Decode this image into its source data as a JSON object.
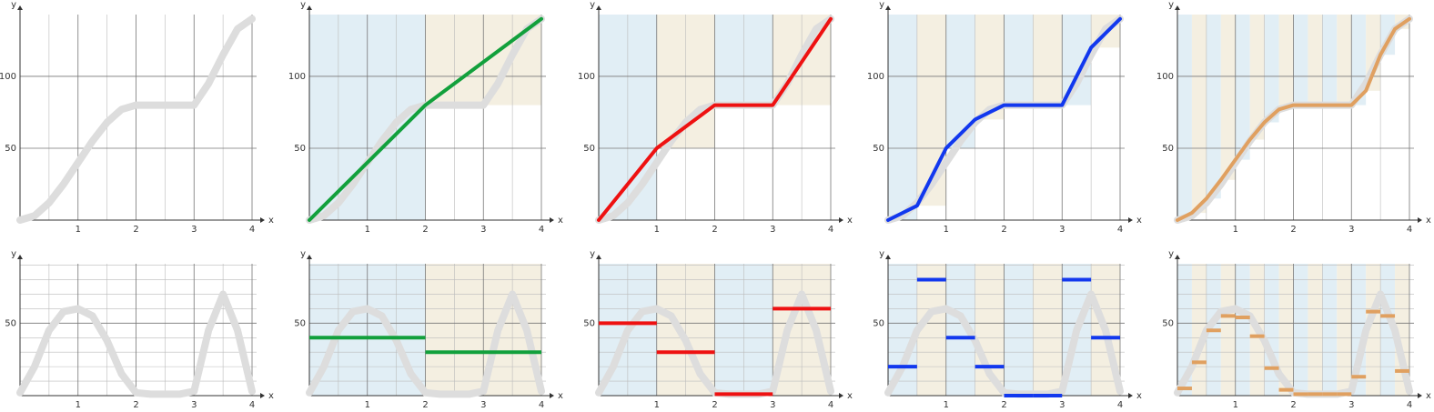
{
  "chart_data": [
    {
      "type": "line",
      "xlabel": "x",
      "ylabel": "y",
      "xlim": [
        0,
        4
      ],
      "ylim": [
        0,
        143
      ],
      "xticks": [
        1,
        2,
        3,
        4
      ],
      "xminor": [
        0.5,
        1.5,
        2.5,
        3.5
      ],
      "yticks": [
        50,
        100
      ],
      "yminor": [],
      "band_colors": [
        "#e1eef5",
        "#f4efe1"
      ],
      "series": [
        {
          "color": "#dddddd",
          "x": [
            0,
            0.25,
            0.5,
            0.75,
            1,
            1.25,
            1.5,
            1.75,
            2,
            2.25,
            2.5,
            2.75,
            3,
            3.25,
            3.5,
            3.75,
            4
          ],
          "values": [
            0,
            3,
            12,
            25,
            40,
            55,
            68,
            77,
            80,
            80,
            80,
            80,
            80,
            95,
            115,
            133,
            140
          ]
        }
      ]
    },
    {
      "type": "line",
      "xlabel": "x",
      "ylabel": "y",
      "xlim": [
        0,
        4
      ],
      "ylim": [
        0,
        143
      ],
      "xticks": [
        1,
        2,
        3,
        4
      ],
      "xminor": [
        0.5,
        1.5,
        2.5,
        3.5
      ],
      "yticks": [
        50,
        100
      ],
      "yminor": [],
      "band_colors": [
        "#e1eef5",
        "#f4efe1"
      ],
      "series": [
        {
          "color": "#dddddd",
          "x": [
            0,
            0.25,
            0.5,
            0.75,
            1,
            1.25,
            1.5,
            1.75,
            2,
            2.25,
            2.5,
            2.75,
            3,
            3.25,
            3.5,
            3.75,
            4
          ],
          "values": [
            0,
            3,
            12,
            25,
            40,
            55,
            68,
            77,
            80,
            80,
            80,
            80,
            80,
            95,
            115,
            133,
            140
          ]
        },
        {
          "color": "#12a03c",
          "x": [
            0,
            2,
            4
          ],
          "values": [
            0,
            80,
            140
          ]
        }
      ]
    },
    {
      "type": "line",
      "xlabel": "x",
      "ylabel": "y",
      "xlim": [
        0,
        4
      ],
      "ylim": [
        0,
        143
      ],
      "xticks": [
        1,
        2,
        3,
        4
      ],
      "xminor": [
        0.5,
        1.5,
        2.5,
        3.5
      ],
      "yticks": [
        50,
        100
      ],
      "yminor": [],
      "band_colors": [
        "#e1eef5",
        "#f4efe1"
      ],
      "series": [
        {
          "color": "#dddddd",
          "x": [
            0,
            0.25,
            0.5,
            0.75,
            1,
            1.25,
            1.5,
            1.75,
            2,
            2.25,
            2.5,
            2.75,
            3,
            3.25,
            3.5,
            3.75,
            4
          ],
          "values": [
            0,
            3,
            12,
            25,
            40,
            55,
            68,
            77,
            80,
            80,
            80,
            80,
            80,
            95,
            115,
            133,
            140
          ]
        },
        {
          "color": "#ee1111",
          "x": [
            0,
            1,
            2,
            3,
            4
          ],
          "values": [
            0,
            50,
            80,
            80,
            140
          ]
        }
      ]
    },
    {
      "type": "line",
      "xlabel": "x",
      "ylabel": "y",
      "xlim": [
        0,
        4
      ],
      "ylim": [
        0,
        143
      ],
      "xticks": [
        1,
        2,
        3,
        4
      ],
      "xminor": [
        0.5,
        1.5,
        2.5,
        3.5
      ],
      "yticks": [
        50,
        100
      ],
      "yminor": [],
      "band_colors": [
        "#e1eef5",
        "#f4efe1"
      ],
      "series": [
        {
          "color": "#dddddd",
          "x": [
            0,
            0.25,
            0.5,
            0.75,
            1,
            1.25,
            1.5,
            1.75,
            2,
            2.25,
            2.5,
            2.75,
            3,
            3.25,
            3.5,
            3.75,
            4
          ],
          "values": [
            0,
            3,
            12,
            25,
            40,
            55,
            68,
            77,
            80,
            80,
            80,
            80,
            80,
            95,
            115,
            133,
            140
          ]
        },
        {
          "color": "#1238ee",
          "x": [
            0,
            0.5,
            1,
            1.5,
            2,
            2.5,
            3,
            3.5,
            4
          ],
          "values": [
            0,
            10,
            50,
            70,
            80,
            80,
            80,
            120,
            140
          ]
        }
      ]
    },
    {
      "type": "line",
      "xlabel": "x",
      "ylabel": "y",
      "xlim": [
        0,
        4
      ],
      "ylim": [
        0,
        143
      ],
      "xticks": [
        1,
        2,
        3,
        4
      ],
      "xminor": [
        0.5,
        1.5,
        2.5,
        3.5
      ],
      "yticks": [
        50,
        100
      ],
      "yminor": [],
      "band_colors": [
        "#e1eef5",
        "#f4efe1"
      ],
      "series": [
        {
          "color": "#dddddd",
          "x": [
            0,
            0.25,
            0.5,
            0.75,
            1,
            1.25,
            1.5,
            1.75,
            2,
            2.25,
            2.5,
            2.75,
            3,
            3.25,
            3.5,
            3.75,
            4
          ],
          "values": [
            0,
            3,
            12,
            25,
            40,
            55,
            68,
            77,
            80,
            80,
            80,
            80,
            80,
            95,
            115,
            133,
            140
          ]
        },
        {
          "color": "#e0a060",
          "x": [
            0,
            0.25,
            0.5,
            0.75,
            1,
            1.25,
            1.5,
            1.75,
            2,
            2.25,
            2.5,
            2.75,
            3,
            3.25,
            3.5,
            3.75,
            4
          ],
          "values": [
            0,
            5,
            15,
            28,
            42,
            56,
            68,
            77,
            80,
            80,
            80,
            80,
            80,
            90,
            115,
            133,
            140
          ]
        }
      ]
    },
    {
      "type": "step",
      "xlabel": "x",
      "ylabel": "y",
      "xlim": [
        0,
        4
      ],
      "ylim": [
        0,
        91
      ],
      "xticks": [
        1,
        2,
        3,
        4
      ],
      "xminor": [
        0.5,
        1.5,
        2.5,
        3.5
      ],
      "yticks": [
        50
      ],
      "yminor": [
        10,
        20,
        30,
        40,
        60,
        70,
        80,
        90
      ],
      "band_colors": [
        "#e1eef5",
        "#f4efe1"
      ],
      "series": [
        {
          "color": "#dddddd",
          "x": [
            0,
            0.25,
            0.5,
            0.75,
            1,
            1.25,
            1.5,
            1.75,
            2,
            2.25,
            2.5,
            2.75,
            3,
            3.25,
            3.5,
            3.75,
            4
          ],
          "values": [
            2,
            20,
            45,
            58,
            60,
            55,
            38,
            15,
            2,
            1,
            1,
            1,
            3,
            45,
            70,
            45,
            3
          ]
        }
      ]
    },
    {
      "type": "step",
      "xlabel": "x",
      "ylabel": "y",
      "xlim": [
        0,
        4
      ],
      "ylim": [
        0,
        91
      ],
      "xticks": [
        1,
        2,
        3,
        4
      ],
      "xminor": [
        0.5,
        1.5,
        2.5,
        3.5
      ],
      "yticks": [
        50
      ],
      "yminor": [
        10,
        20,
        30,
        40,
        60,
        70,
        80,
        90
      ],
      "band_colors": [
        "#e1eef5",
        "#f4efe1"
      ],
      "series": [
        {
          "color": "#dddddd",
          "x": [
            0,
            0.25,
            0.5,
            0.75,
            1,
            1.25,
            1.5,
            1.75,
            2,
            2.25,
            2.5,
            2.75,
            3,
            3.25,
            3.5,
            3.75,
            4
          ],
          "values": [
            2,
            20,
            45,
            58,
            60,
            55,
            38,
            15,
            2,
            1,
            1,
            1,
            3,
            45,
            70,
            45,
            3
          ]
        },
        {
          "color": "#12a03c",
          "bins": [
            0,
            2,
            4
          ],
          "values": [
            40,
            30
          ]
        }
      ]
    },
    {
      "type": "step",
      "xlabel": "x",
      "ylabel": "y",
      "xlim": [
        0,
        4
      ],
      "ylim": [
        0,
        91
      ],
      "xticks": [
        1,
        2,
        3,
        4
      ],
      "xminor": [
        0.5,
        1.5,
        2.5,
        3.5
      ],
      "yticks": [
        50
      ],
      "yminor": [
        10,
        20,
        30,
        40,
        60,
        70,
        80,
        90
      ],
      "band_colors": [
        "#e1eef5",
        "#f4efe1"
      ],
      "series": [
        {
          "color": "#dddddd",
          "x": [
            0,
            0.25,
            0.5,
            0.75,
            1,
            1.25,
            1.5,
            1.75,
            2,
            2.25,
            2.5,
            2.75,
            3,
            3.25,
            3.5,
            3.75,
            4
          ],
          "values": [
            2,
            20,
            45,
            58,
            60,
            55,
            38,
            15,
            2,
            1,
            1,
            1,
            3,
            45,
            70,
            45,
            3
          ]
        },
        {
          "color": "#ee1111",
          "bins": [
            0,
            1,
            2,
            3,
            4
          ],
          "values": [
            50,
            30,
            1,
            60
          ]
        }
      ]
    },
    {
      "type": "step",
      "xlabel": "x",
      "ylabel": "y",
      "xlim": [
        0,
        4
      ],
      "ylim": [
        0,
        91
      ],
      "xticks": [
        1,
        2,
        3,
        4
      ],
      "xminor": [
        0.5,
        1.5,
        2.5,
        3.5
      ],
      "yticks": [
        50
      ],
      "yminor": [
        10,
        20,
        30,
        40,
        60,
        70,
        80,
        90
      ],
      "band_colors": [
        "#e1eef5",
        "#f4efe1"
      ],
      "series": [
        {
          "color": "#dddddd",
          "x": [
            0,
            0.25,
            0.5,
            0.75,
            1,
            1.25,
            1.5,
            1.75,
            2,
            2.25,
            2.5,
            2.75,
            3,
            3.25,
            3.5,
            3.75,
            4
          ],
          "values": [
            2,
            20,
            45,
            58,
            60,
            55,
            38,
            15,
            2,
            1,
            1,
            1,
            3,
            45,
            70,
            45,
            3
          ]
        },
        {
          "color": "#1238ee",
          "bins": [
            0,
            0.5,
            1,
            1.5,
            2,
            2.5,
            3,
            3.5,
            4
          ],
          "values": [
            20,
            80,
            40,
            20,
            0,
            0,
            80,
            40
          ]
        }
      ]
    },
    {
      "type": "step",
      "xlabel": "x",
      "ylabel": "y",
      "xlim": [
        0,
        4
      ],
      "ylim": [
        0,
        91
      ],
      "xticks": [
        1,
        2,
        3,
        4
      ],
      "xminor": [
        0.5,
        1.5,
        2.5,
        3.5
      ],
      "yticks": [
        50
      ],
      "yminor": [
        10,
        20,
        30,
        40,
        60,
        70,
        80,
        90
      ],
      "band_colors": [
        "#e1eef5",
        "#f4efe1"
      ],
      "series": [
        {
          "color": "#dddddd",
          "x": [
            0,
            0.25,
            0.5,
            0.75,
            1,
            1.25,
            1.5,
            1.75,
            2,
            2.25,
            2.5,
            2.75,
            3,
            3.25,
            3.5,
            3.75,
            4
          ],
          "values": [
            2,
            20,
            45,
            58,
            60,
            55,
            38,
            15,
            2,
            1,
            1,
            1,
            3,
            45,
            70,
            45,
            3
          ]
        },
        {
          "color": "#e0a060",
          "bins": [
            0,
            0.25,
            0.5,
            0.75,
            1,
            1.25,
            1.5,
            1.75,
            2,
            2.25,
            2.5,
            2.75,
            3,
            3.25,
            3.5,
            3.75,
            4
          ],
          "values": [
            5,
            23,
            45,
            55,
            54,
            41,
            19,
            4,
            1,
            1,
            1,
            1,
            13,
            58,
            55,
            17
          ]
        }
      ]
    }
  ]
}
